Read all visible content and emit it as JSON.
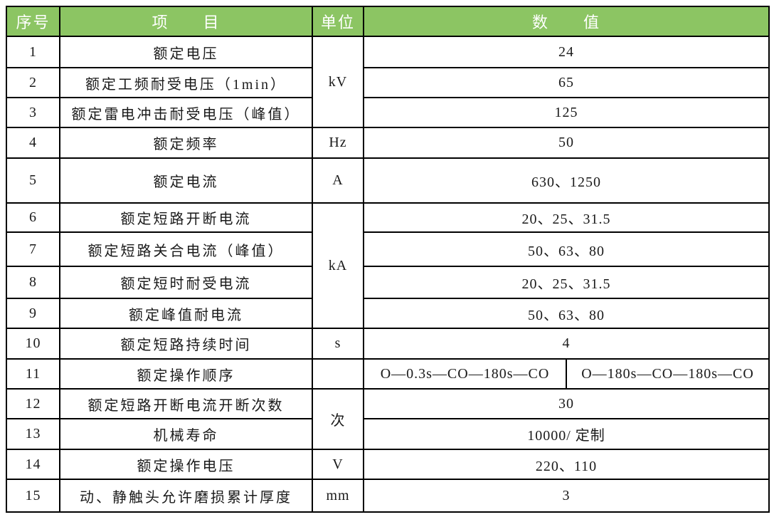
{
  "table": {
    "header": {
      "col_no": "序号",
      "col_item": "项　　目",
      "col_unit": "单位",
      "col_value": "数　　值"
    },
    "rows": [
      {
        "no": "1",
        "item": "额定电压",
        "unit": "kV",
        "unit_rowspan": 3,
        "value": "24"
      },
      {
        "no": "2",
        "item": "额定工频耐受电压（1min）",
        "value": "65"
      },
      {
        "no": "3",
        "item": "额定雷电冲击耐受电压（峰值）",
        "value": "125"
      },
      {
        "no": "4",
        "item": "额定频率",
        "unit": "Hz",
        "value": "50"
      },
      {
        "no": "5",
        "item": "额定电流",
        "unit": "A",
        "value": "630、1250"
      },
      {
        "no": "6",
        "item": "额定短路开断电流",
        "unit": "kA",
        "unit_rowspan": 4,
        "value": "20、25、31.5"
      },
      {
        "no": "7",
        "item": "额定短路关合电流（峰值）",
        "value": "50、63、80"
      },
      {
        "no": "8",
        "item": "额定短时耐受电流",
        "value": "20、25、31.5"
      },
      {
        "no": "9",
        "item": "额定峰值耐电流",
        "value": "50、63、80"
      },
      {
        "no": "10",
        "item": "额定短路持续时间",
        "unit": "s",
        "value": "4"
      },
      {
        "no": "11",
        "item": "额定操作顺序",
        "unit": "",
        "values": [
          "O—0.3s—CO—180s—CO",
          "O—180s—CO—180s—CO"
        ]
      },
      {
        "no": "12",
        "item": "额定短路开断电流开断次数",
        "unit": "次",
        "unit_rowspan": 2,
        "value": "30"
      },
      {
        "no": "13",
        "item": "机械寿命",
        "value": "10000/ 定制"
      },
      {
        "no": "14",
        "item": "额定操作电压",
        "unit": "V",
        "value": "220、110"
      },
      {
        "no": "15",
        "item": "动、静触头允许磨损累计厚度",
        "unit": "mm",
        "value": "3"
      }
    ],
    "colors": {
      "header_bg": "#8CC563",
      "header_text": "#FFFFFF",
      "border": "#000000",
      "body_text": "#1A1A1A"
    }
  }
}
